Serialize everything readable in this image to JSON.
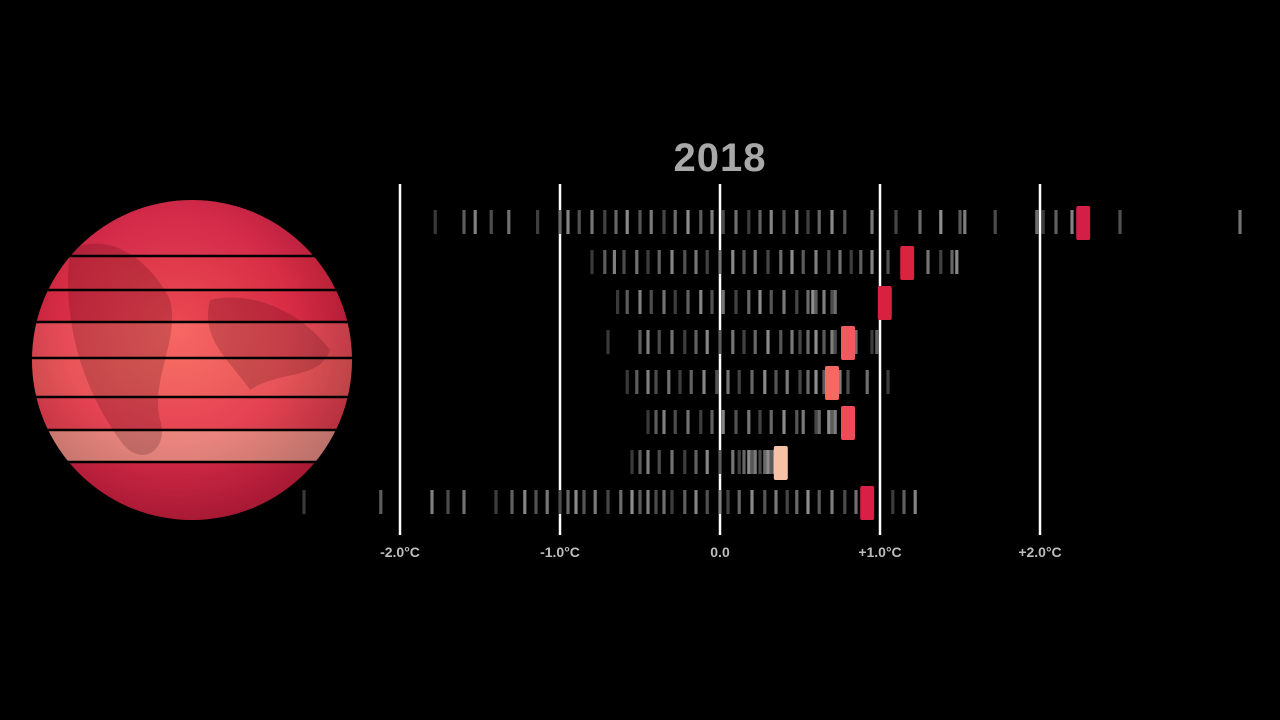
{
  "year_label": "2018",
  "chart_data": {
    "type": "strip",
    "title": "2018",
    "xlabel": "",
    "ylabel": "",
    "xlim": [
      -2.5,
      3.3
    ],
    "unit": "°C",
    "ticks": [
      {
        "value": -2.0,
        "label": "-2.0°C"
      },
      {
        "value": -1.0,
        "label": "-1.0°C"
      },
      {
        "value": 0.0,
        "label": "0.0"
      },
      {
        "value": 1.0,
        "label": "+1.0°C"
      },
      {
        "value": 2.0,
        "label": "+2.0°C"
      }
    ],
    "colors": {
      "background": "#000000",
      "history_strip": "#9a9a9a",
      "gridline": "#ffffff",
      "highlight": [
        "#d21f47",
        "#d8243f",
        "#d8203f",
        "#f05a5f",
        "#f46a62",
        "#ef4a58",
        "#f7c1a6",
        "#d82046"
      ]
    },
    "bands": [
      {
        "band": 1,
        "current": 2.27,
        "history": [
          -1.78,
          -1.6,
          -1.53,
          -1.43,
          -1.32,
          -1.14,
          -1.0,
          -0.95,
          -0.88,
          -0.8,
          -0.72,
          -0.65,
          -0.58,
          -0.5,
          -0.43,
          -0.35,
          -0.28,
          -0.2,
          -0.12,
          -0.05,
          0.02,
          0.1,
          0.18,
          0.25,
          0.32,
          0.4,
          0.48,
          0.55,
          0.62,
          0.7,
          0.78,
          0.95,
          1.1,
          1.25,
          1.38,
          1.5,
          1.53,
          1.72,
          1.98,
          2.02,
          2.1,
          2.2,
          2.5,
          3.25
        ]
      },
      {
        "band": 2,
        "current": 1.17,
        "history": [
          -0.8,
          -0.72,
          -0.66,
          -0.6,
          -0.52,
          -0.45,
          -0.38,
          -0.3,
          -0.22,
          -0.15,
          -0.08,
          0.0,
          0.08,
          0.15,
          0.22,
          0.3,
          0.38,
          0.45,
          0.52,
          0.6,
          0.68,
          0.75,
          0.82,
          0.88,
          0.95,
          1.05,
          1.3,
          1.38,
          1.45,
          1.48
        ]
      },
      {
        "band": 3,
        "current": 1.03,
        "history": [
          -0.64,
          -0.58,
          -0.5,
          -0.43,
          -0.35,
          -0.28,
          -0.2,
          -0.12,
          -0.05,
          0.02,
          0.1,
          0.18,
          0.25,
          0.32,
          0.4,
          0.48,
          0.55,
          0.58,
          0.6,
          0.65,
          0.7,
          0.72
        ]
      },
      {
        "band": 4,
        "current": 0.8,
        "history": [
          -0.7,
          -0.5,
          -0.45,
          -0.38,
          -0.3,
          -0.22,
          -0.15,
          -0.08,
          0.0,
          0.08,
          0.15,
          0.22,
          0.3,
          0.38,
          0.45,
          0.5,
          0.55,
          0.6,
          0.65,
          0.7,
          0.72,
          0.85,
          0.95,
          0.98
        ]
      },
      {
        "band": 5,
        "current": 0.7,
        "history": [
          -0.58,
          -0.52,
          -0.45,
          -0.4,
          -0.32,
          -0.25,
          -0.18,
          -0.1,
          -0.02,
          0.05,
          0.12,
          0.2,
          0.28,
          0.35,
          0.42,
          0.5,
          0.55,
          0.6,
          0.65,
          0.75,
          0.8,
          0.92,
          1.05
        ]
      },
      {
        "band": 6,
        "current": 0.8,
        "history": [
          -0.45,
          -0.4,
          -0.35,
          -0.28,
          -0.2,
          -0.12,
          -0.05,
          0.02,
          0.1,
          0.18,
          0.25,
          0.32,
          0.4,
          0.48,
          0.52,
          0.6,
          0.62,
          0.68,
          0.7,
          0.72
        ]
      },
      {
        "band": 7,
        "current": 0.38,
        "history": [
          -0.55,
          -0.5,
          -0.45,
          -0.38,
          -0.3,
          -0.22,
          -0.15,
          -0.08,
          0.0,
          0.08,
          0.12,
          0.15,
          0.18,
          0.2,
          0.22,
          0.25,
          0.28,
          0.3,
          0.32,
          0.34
        ]
      },
      {
        "band": 8,
        "current": 0.92,
        "history": [
          -2.6,
          -2.12,
          -1.8,
          -1.7,
          -1.6,
          -1.4,
          -1.3,
          -1.22,
          -1.15,
          -1.08,
          -1.0,
          -0.95,
          -0.9,
          -0.85,
          -0.78,
          -0.7,
          -0.62,
          -0.55,
          -0.5,
          -0.45,
          -0.4,
          -0.35,
          -0.3,
          -0.22,
          -0.15,
          -0.08,
          0.0,
          0.05,
          0.12,
          0.2,
          0.28,
          0.35,
          0.42,
          0.48,
          0.55,
          0.62,
          0.7,
          0.78,
          0.85,
          1.08,
          1.15,
          1.22
        ]
      }
    ]
  }
}
